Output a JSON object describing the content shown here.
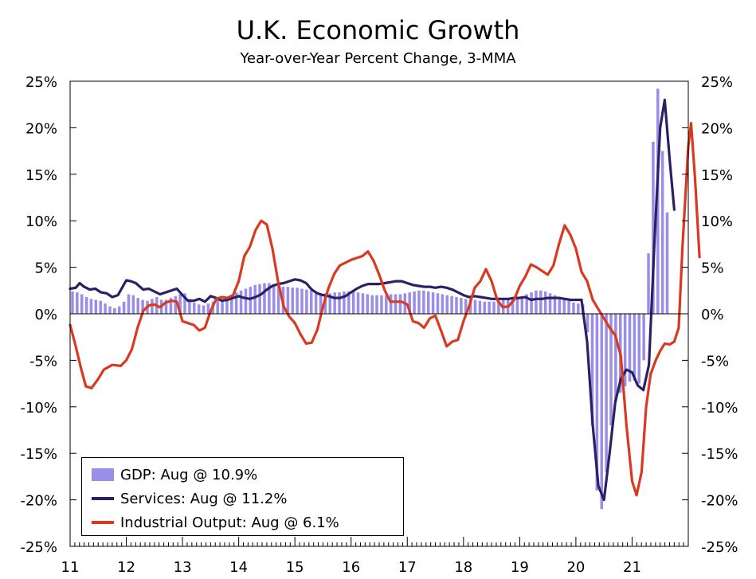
{
  "chart_data": {
    "type": "bar+line",
    "title": "U.K. Economic Growth",
    "subtitle": "Year-over-Year Percent Change, 3-MMA",
    "ylim": [
      -25,
      25
    ],
    "ytick_values": [
      25,
      20,
      15,
      10,
      5,
      0,
      -5,
      -10,
      -15,
      -20,
      -25
    ],
    "ytick_labels_left": [
      "25%",
      "20%",
      "15%",
      "10%",
      "5%",
      "0%",
      "-5%",
      "-10%",
      "-15%",
      "-20%",
      "-25%"
    ],
    "ytick_labels_right": [
      "25%",
      "20%",
      "15%",
      "10%",
      "5%",
      "0%",
      "-5%",
      "-10%",
      "-15%",
      "-20%",
      "-25%"
    ],
    "x_start_year": 11,
    "x_end_year": 22,
    "xtick_labels": [
      "11",
      "12",
      "13",
      "14",
      "15",
      "16",
      "17",
      "18",
      "19",
      "20",
      "21"
    ],
    "gdp_start": "2011-01",
    "series": [
      {
        "name": "GDP",
        "type": "bar",
        "color": "#9a8fe6",
        "legend": "GDP: Aug @ 10.9%",
        "values": [
          2.4,
          2.3,
          2.1,
          1.8,
          1.6,
          1.5,
          1.4,
          1.1,
          0.8,
          0.6,
          0.8,
          1.3,
          2.1,
          2.0,
          1.7,
          1.5,
          1.4,
          1.6,
          1.8,
          1.5,
          1.5,
          1.7,
          1.9,
          2.1,
          2.2,
          1.6,
          1.2,
          1.0,
          0.9,
          1.1,
          1.3,
          1.5,
          1.6,
          1.8,
          2.0,
          2.3,
          2.5,
          2.7,
          2.9,
          3.1,
          3.2,
          3.3,
          3.3,
          3.2,
          3.0,
          2.9,
          2.9,
          2.8,
          2.8,
          2.7,
          2.6,
          2.5,
          2.3,
          2.2,
          2.2,
          2.2,
          2.3,
          2.3,
          2.4,
          2.4,
          2.4,
          2.3,
          2.2,
          2.1,
          2.0,
          2.0,
          2.0,
          2.0,
          2.1,
          2.1,
          2.1,
          2.2,
          2.3,
          2.4,
          2.5,
          2.5,
          2.4,
          2.3,
          2.2,
          2.1,
          2.0,
          1.9,
          1.8,
          1.7,
          1.6,
          1.6,
          1.5,
          1.4,
          1.3,
          1.3,
          1.3,
          1.4,
          1.5,
          1.6,
          1.7,
          1.8,
          1.9,
          2.1,
          2.3,
          2.5,
          2.5,
          2.4,
          2.2,
          2.0,
          1.8,
          1.6,
          1.4,
          1.2,
          1.1,
          1.0,
          -2.0,
          -12.0,
          -19.0,
          -21.0,
          -17.0,
          -12.0,
          -9.5,
          -8.5,
          -7.8,
          -7.3,
          -7.2,
          -7.5,
          -5.0,
          6.5,
          18.5,
          24.2,
          17.5,
          10.9
        ]
      },
      {
        "name": "Services",
        "type": "line",
        "color": "#2b2065",
        "legend": "Services: Aug @ 11.2%",
        "points": [
          [
            11.0,
            2.7
          ],
          [
            11.1,
            2.8
          ],
          [
            11.17,
            3.3
          ],
          [
            11.25,
            2.9
          ],
          [
            11.35,
            2.6
          ],
          [
            11.45,
            2.7
          ],
          [
            11.55,
            2.3
          ],
          [
            11.65,
            2.2
          ],
          [
            11.75,
            1.8
          ],
          [
            11.85,
            2.0
          ],
          [
            12.0,
            3.6
          ],
          [
            12.08,
            3.5
          ],
          [
            12.17,
            3.3
          ],
          [
            12.3,
            2.6
          ],
          [
            12.4,
            2.7
          ],
          [
            12.5,
            2.4
          ],
          [
            12.6,
            2.1
          ],
          [
            12.7,
            2.3
          ],
          [
            12.8,
            2.5
          ],
          [
            12.9,
            2.7
          ],
          [
            13.0,
            2.0
          ],
          [
            13.1,
            1.4
          ],
          [
            13.2,
            1.4
          ],
          [
            13.3,
            1.6
          ],
          [
            13.4,
            1.3
          ],
          [
            13.5,
            1.9
          ],
          [
            13.6,
            1.7
          ],
          [
            13.7,
            1.4
          ],
          [
            13.8,
            1.5
          ],
          [
            13.9,
            1.7
          ],
          [
            14.0,
            1.9
          ],
          [
            14.1,
            1.7
          ],
          [
            14.2,
            1.6
          ],
          [
            14.3,
            1.8
          ],
          [
            14.4,
            2.1
          ],
          [
            14.5,
            2.6
          ],
          [
            14.6,
            3.0
          ],
          [
            14.7,
            3.2
          ],
          [
            14.8,
            3.3
          ],
          [
            14.9,
            3.5
          ],
          [
            15.0,
            3.7
          ],
          [
            15.1,
            3.6
          ],
          [
            15.2,
            3.3
          ],
          [
            15.3,
            2.6
          ],
          [
            15.4,
            2.2
          ],
          [
            15.5,
            2.0
          ],
          [
            15.6,
            1.9
          ],
          [
            15.7,
            1.7
          ],
          [
            15.8,
            1.7
          ],
          [
            15.9,
            1.9
          ],
          [
            16.0,
            2.3
          ],
          [
            16.1,
            2.7
          ],
          [
            16.2,
            3.0
          ],
          [
            16.3,
            3.2
          ],
          [
            16.5,
            3.2
          ],
          [
            16.6,
            3.3
          ],
          [
            16.7,
            3.4
          ],
          [
            16.8,
            3.5
          ],
          [
            16.9,
            3.5
          ],
          [
            17.0,
            3.3
          ],
          [
            17.1,
            3.1
          ],
          [
            17.2,
            3.0
          ],
          [
            17.3,
            2.9
          ],
          [
            17.4,
            2.9
          ],
          [
            17.5,
            2.8
          ],
          [
            17.6,
            2.9
          ],
          [
            17.7,
            2.8
          ],
          [
            17.8,
            2.6
          ],
          [
            17.9,
            2.3
          ],
          [
            18.0,
            2.0
          ],
          [
            18.1,
            1.8
          ],
          [
            18.2,
            1.9
          ],
          [
            18.3,
            1.8
          ],
          [
            18.4,
            1.7
          ],
          [
            18.5,
            1.6
          ],
          [
            18.6,
            1.6
          ],
          [
            18.7,
            1.6
          ],
          [
            18.8,
            1.6
          ],
          [
            18.9,
            1.7
          ],
          [
            19.0,
            1.7
          ],
          [
            19.1,
            1.8
          ],
          [
            19.2,
            1.5
          ],
          [
            19.3,
            1.6
          ],
          [
            19.4,
            1.6
          ],
          [
            19.5,
            1.7
          ],
          [
            19.6,
            1.7
          ],
          [
            19.7,
            1.7
          ],
          [
            19.8,
            1.6
          ],
          [
            19.9,
            1.5
          ],
          [
            20.0,
            1.5
          ],
          [
            20.1,
            1.5
          ],
          [
            20.2,
            -3.0
          ],
          [
            20.3,
            -12.0
          ],
          [
            20.4,
            -18.5
          ],
          [
            20.5,
            -20.0
          ],
          [
            20.6,
            -15.0
          ],
          [
            20.7,
            -9.5
          ],
          [
            20.8,
            -7.0
          ],
          [
            20.9,
            -6.0
          ],
          [
            21.0,
            -6.3
          ],
          [
            21.1,
            -7.7
          ],
          [
            21.2,
            -8.2
          ],
          [
            21.3,
            -5.5
          ],
          [
            21.4,
            8.0
          ],
          [
            21.5,
            20.0
          ],
          [
            21.58,
            23.0
          ],
          [
            21.67,
            16.5
          ],
          [
            21.75,
            11.2
          ]
        ]
      },
      {
        "name": "Industrial Output",
        "type": "line",
        "color": "#d8391f",
        "legend": "Industrial Output: Aug @ 6.1%",
        "points": [
          [
            11.0,
            -1.2
          ],
          [
            11.1,
            -3.5
          ],
          [
            11.2,
            -6.0
          ],
          [
            11.28,
            -7.8
          ],
          [
            11.38,
            -8.0
          ],
          [
            11.5,
            -7.0
          ],
          [
            11.6,
            -6.0
          ],
          [
            11.75,
            -5.5
          ],
          [
            11.9,
            -5.6
          ],
          [
            12.0,
            -5.0
          ],
          [
            12.1,
            -3.8
          ],
          [
            12.2,
            -1.5
          ],
          [
            12.3,
            0.3
          ],
          [
            12.4,
            0.9
          ],
          [
            12.5,
            1.0
          ],
          [
            12.6,
            0.7
          ],
          [
            12.7,
            1.2
          ],
          [
            12.8,
            1.4
          ],
          [
            12.9,
            1.3
          ],
          [
            13.0,
            -0.8
          ],
          [
            13.1,
            -1.0
          ],
          [
            13.2,
            -1.2
          ],
          [
            13.3,
            -1.8
          ],
          [
            13.4,
            -1.5
          ],
          [
            13.5,
            0.3
          ],
          [
            13.6,
            1.6
          ],
          [
            13.7,
            1.8
          ],
          [
            13.8,
            1.7
          ],
          [
            13.9,
            2.0
          ],
          [
            14.0,
            3.5
          ],
          [
            14.1,
            6.2
          ],
          [
            14.2,
            7.2
          ],
          [
            14.3,
            9.0
          ],
          [
            14.4,
            10.0
          ],
          [
            14.5,
            9.6
          ],
          [
            14.6,
            7.0
          ],
          [
            14.7,
            3.5
          ],
          [
            14.8,
            0.8
          ],
          [
            14.9,
            -0.3
          ],
          [
            15.0,
            -1.0
          ],
          [
            15.1,
            -2.2
          ],
          [
            15.2,
            -3.2
          ],
          [
            15.3,
            -3.1
          ],
          [
            15.4,
            -1.7
          ],
          [
            15.5,
            0.8
          ],
          [
            15.6,
            2.8
          ],
          [
            15.7,
            4.3
          ],
          [
            15.8,
            5.2
          ],
          [
            15.9,
            5.5
          ],
          [
            16.0,
            5.8
          ],
          [
            16.1,
            6.0
          ],
          [
            16.2,
            6.2
          ],
          [
            16.3,
            6.7
          ],
          [
            16.4,
            5.7
          ],
          [
            16.5,
            4.2
          ],
          [
            16.6,
            2.5
          ],
          [
            16.7,
            1.3
          ],
          [
            16.8,
            1.3
          ],
          [
            16.9,
            1.3
          ],
          [
            17.0,
            1.0
          ],
          [
            17.1,
            -0.8
          ],
          [
            17.2,
            -1.0
          ],
          [
            17.3,
            -1.5
          ],
          [
            17.4,
            -0.5
          ],
          [
            17.5,
            -0.2
          ],
          [
            17.6,
            -1.8
          ],
          [
            17.7,
            -3.5
          ],
          [
            17.8,
            -3.0
          ],
          [
            17.9,
            -2.8
          ],
          [
            18.0,
            -0.8
          ],
          [
            18.1,
            0.8
          ],
          [
            18.2,
            2.8
          ],
          [
            18.3,
            3.5
          ],
          [
            18.4,
            4.8
          ],
          [
            18.5,
            3.5
          ],
          [
            18.6,
            1.5
          ],
          [
            18.7,
            0.7
          ],
          [
            18.8,
            0.8
          ],
          [
            18.9,
            1.5
          ],
          [
            19.0,
            3.0
          ],
          [
            19.1,
            4.0
          ],
          [
            19.2,
            5.3
          ],
          [
            19.3,
            5.0
          ],
          [
            19.4,
            4.6
          ],
          [
            19.5,
            4.2
          ],
          [
            19.6,
            5.2
          ],
          [
            19.7,
            7.5
          ],
          [
            19.8,
            9.5
          ],
          [
            19.9,
            8.5
          ],
          [
            20.0,
            7.0
          ],
          [
            20.1,
            4.5
          ],
          [
            20.2,
            3.5
          ],
          [
            20.3,
            1.5
          ],
          [
            20.4,
            0.5
          ],
          [
            20.5,
            -0.5
          ],
          [
            20.6,
            -1.5
          ],
          [
            20.7,
            -2.3
          ],
          [
            20.8,
            -4.5
          ],
          [
            20.9,
            -12.0
          ],
          [
            21.0,
            -18.0
          ],
          [
            21.08,
            -19.5
          ],
          [
            21.17,
            -17.0
          ],
          [
            21.25,
            -10.0
          ],
          [
            21.33,
            -6.5
          ],
          [
            21.42,
            -5.0
          ],
          [
            21.5,
            -4.0
          ],
          [
            21.58,
            -3.2
          ],
          [
            21.67,
            -3.3
          ],
          [
            21.75,
            -3.0
          ],
          [
            21.83,
            -1.5
          ],
          [
            21.9,
            7.5
          ],
          [
            22.0,
            18.0
          ],
          [
            22.05,
            20.5
          ],
          [
            22.12,
            14.5
          ],
          [
            22.2,
            6.1
          ]
        ]
      }
    ],
    "legend_position": "bottom-left"
  }
}
